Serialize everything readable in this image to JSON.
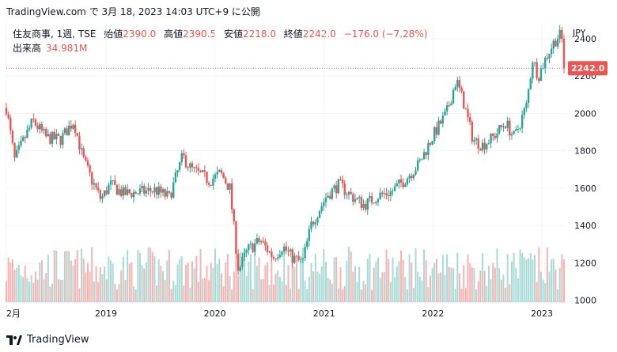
{
  "header": {
    "source": "TradingView.com",
    "timestamp": "で 3月 18, 2023 14:03 UTC+9 に公開"
  },
  "legend": {
    "symbol": "住友商事, 1週, TSE",
    "open_label": "始値",
    "open": "2390.0",
    "high_label": "高値",
    "high": "2390.5",
    "low_label": "安値",
    "low": "2218.0",
    "close_label": "終値",
    "close": "2242.0",
    "change": "−176.0 (−7.28%)",
    "volume_label": "出来高",
    "volume": "34.981M"
  },
  "footer": {
    "brand": "TradingView"
  },
  "colors": {
    "up": "#26a69a",
    "down": "#ef5350",
    "vol_up": "#a8dbd6",
    "vol_down": "#f7b3b1",
    "grid": "#f0f3fa",
    "last_line": "#ef5350"
  },
  "chart_data": {
    "type": "candlestick",
    "currency": "JPY",
    "interval": "weekly",
    "y_ticks": [
      1000,
      1200,
      1400,
      1600,
      1800,
      2000,
      2200,
      2400
    ],
    "ylim": [
      990,
      2480
    ],
    "x_labels": [
      "2月",
      "2019",
      "2020",
      "2021",
      "2022",
      "2023"
    ],
    "x_label_dates": [
      "2018-02-01",
      "2019-01-01",
      "2020-01-01",
      "2021-01-01",
      "2022-01-01",
      "2023-01-01"
    ],
    "xlim": [
      "2018-02-01",
      "2023-03-24"
    ],
    "last_price": 2242.0,
    "last_price_label": "2242.0",
    "grid": true,
    "anchors": [
      [
        "2018-02-01",
        2030
      ],
      [
        "2018-03-01",
        1750
      ],
      [
        "2018-04-01",
        1860
      ],
      [
        "2018-05-01",
        1960
      ],
      [
        "2018-06-15",
        1870
      ],
      [
        "2018-08-01",
        1860
      ],
      [
        "2018-09-15",
        1960
      ],
      [
        "2018-10-15",
        1760
      ],
      [
        "2018-11-15",
        1640
      ],
      [
        "2018-12-15",
        1540
      ],
      [
        "2019-01-15",
        1620
      ],
      [
        "2019-03-01",
        1570
      ],
      [
        "2019-05-01",
        1580
      ],
      [
        "2019-06-15",
        1590
      ],
      [
        "2019-08-01",
        1550
      ],
      [
        "2019-09-15",
        1770
      ],
      [
        "2019-10-15",
        1700
      ],
      [
        "2019-11-15",
        1670
      ],
      [
        "2019-12-15",
        1640
      ],
      [
        "2020-01-20",
        1680
      ],
      [
        "2020-02-20",
        1600
      ],
      [
        "2020-03-20",
        1160
      ],
      [
        "2020-04-20",
        1270
      ],
      [
        "2020-06-01",
        1320
      ],
      [
        "2020-07-15",
        1230
      ],
      [
        "2020-08-15",
        1290
      ],
      [
        "2020-09-15",
        1230
      ],
      [
        "2020-10-20",
        1200
      ],
      [
        "2020-11-20",
        1410
      ],
      [
        "2021-01-10",
        1560
      ],
      [
        "2021-02-20",
        1620
      ],
      [
        "2021-04-01",
        1560
      ],
      [
        "2021-05-15",
        1510
      ],
      [
        "2021-07-01",
        1560
      ],
      [
        "2021-08-15",
        1580
      ],
      [
        "2021-10-01",
        1650
      ],
      [
        "2021-11-15",
        1730
      ],
      [
        "2022-01-01",
        1880
      ],
      [
        "2022-02-15",
        2000
      ],
      [
        "2022-03-20",
        2180
      ],
      [
        "2022-04-15",
        2050
      ],
      [
        "2022-05-15",
        1860
      ],
      [
        "2022-06-15",
        1830
      ],
      [
        "2022-07-20",
        1870
      ],
      [
        "2022-09-01",
        1950
      ],
      [
        "2022-10-01",
        1870
      ],
      [
        "2022-11-10",
        2040
      ],
      [
        "2022-12-01",
        2290
      ],
      [
        "2022-12-20",
        2200
      ],
      [
        "2023-01-15",
        2300
      ],
      [
        "2023-02-10",
        2380
      ],
      [
        "2023-02-28",
        2420
      ],
      [
        "2023-03-10",
        2390
      ],
      [
        "2023-03-17",
        2242
      ]
    ],
    "volume_range_millions": [
      8,
      36
    ]
  }
}
